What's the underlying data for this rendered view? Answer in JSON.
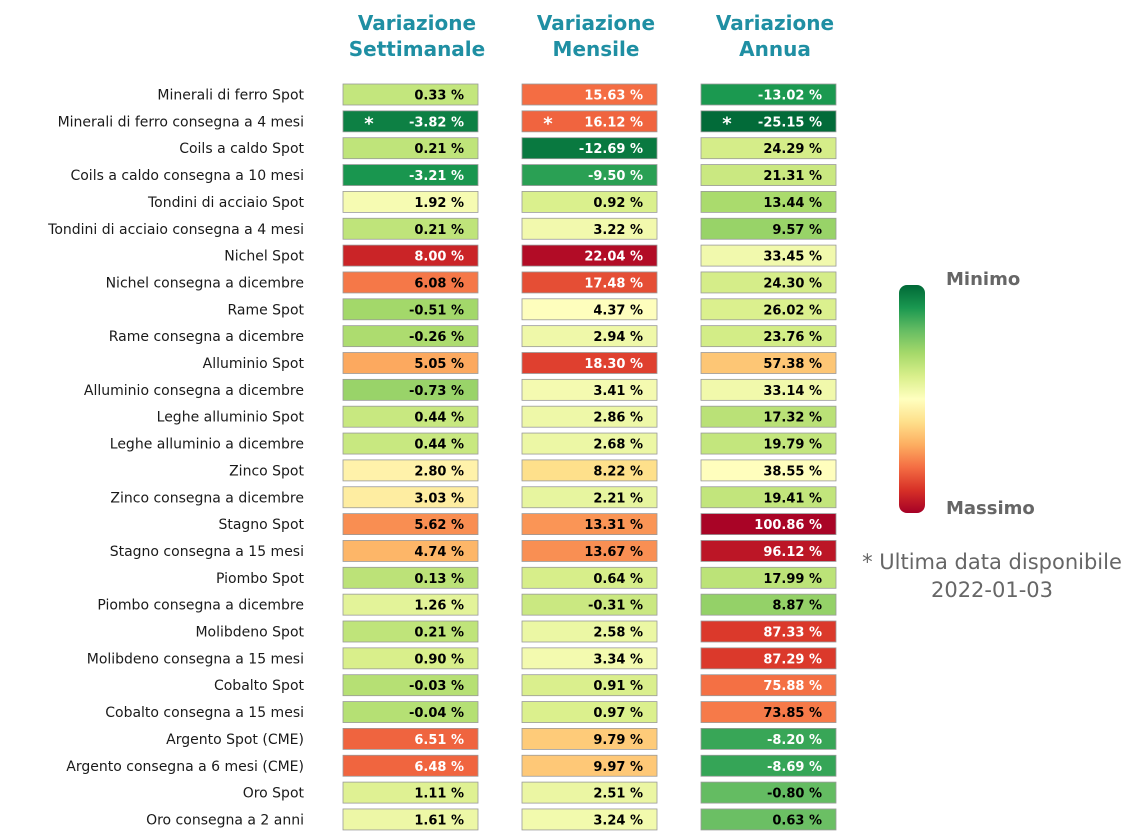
{
  "chart_data": {
    "type": "heatmap",
    "columns": [
      {
        "title_line1": "Variazione",
        "title_line2": "Settimanale"
      },
      {
        "title_line1": "Variazione",
        "title_line2": "Mensile"
      },
      {
        "title_line1": "Variazione",
        "title_line2": "Annua"
      }
    ],
    "rows": [
      {
        "label": "Minerali di ferro Spot",
        "values": [
          0.33,
          15.63,
          -13.02
        ],
        "stars": [
          false,
          false,
          false
        ]
      },
      {
        "label": "Minerali di ferro consegna a 4 mesi",
        "values": [
          -3.82,
          16.12,
          -25.15
        ],
        "stars": [
          true,
          true,
          true
        ]
      },
      {
        "label": "Coils a caldo Spot",
        "values": [
          0.21,
          -12.69,
          24.29
        ],
        "stars": [
          false,
          false,
          false
        ]
      },
      {
        "label": "Coils a caldo consegna a 10 mesi",
        "values": [
          -3.21,
          -9.5,
          21.31
        ],
        "stars": [
          false,
          false,
          false
        ]
      },
      {
        "label": "Tondini di acciaio Spot",
        "values": [
          1.92,
          0.92,
          13.44
        ],
        "stars": [
          false,
          false,
          false
        ]
      },
      {
        "label": "Tondini di acciaio consegna a 4 mesi",
        "values": [
          0.21,
          3.22,
          9.57
        ],
        "stars": [
          false,
          false,
          false
        ]
      },
      {
        "label": "Nichel Spot",
        "values": [
          8.0,
          22.04,
          33.45
        ],
        "stars": [
          false,
          false,
          false
        ]
      },
      {
        "label": "Nichel consegna a dicembre",
        "values": [
          6.08,
          17.48,
          24.3
        ],
        "stars": [
          false,
          false,
          false
        ]
      },
      {
        "label": "Rame Spot",
        "values": [
          -0.51,
          4.37,
          26.02
        ],
        "stars": [
          false,
          false,
          false
        ]
      },
      {
        "label": "Rame consegna a dicembre",
        "values": [
          -0.26,
          2.94,
          23.76
        ],
        "stars": [
          false,
          false,
          false
        ]
      },
      {
        "label": "Alluminio Spot",
        "values": [
          5.05,
          18.3,
          57.38
        ],
        "stars": [
          false,
          false,
          false
        ]
      },
      {
        "label": "Alluminio consegna a dicembre",
        "values": [
          -0.73,
          3.41,
          33.14
        ],
        "stars": [
          false,
          false,
          false
        ]
      },
      {
        "label": "Leghe alluminio Spot",
        "values": [
          0.44,
          2.86,
          17.32
        ],
        "stars": [
          false,
          false,
          false
        ]
      },
      {
        "label": "Leghe alluminio a dicembre",
        "values": [
          0.44,
          2.68,
          19.79
        ],
        "stars": [
          false,
          false,
          false
        ]
      },
      {
        "label": "Zinco Spot",
        "values": [
          2.8,
          8.22,
          38.55
        ],
        "stars": [
          false,
          false,
          false
        ]
      },
      {
        "label": "Zinco consegna a dicembre",
        "values": [
          3.03,
          2.21,
          19.41
        ],
        "stars": [
          false,
          false,
          false
        ]
      },
      {
        "label": "Stagno Spot",
        "values": [
          5.62,
          13.31,
          100.86
        ],
        "stars": [
          false,
          false,
          false
        ]
      },
      {
        "label": "Stagno consegna a 15 mesi",
        "values": [
          4.74,
          13.67,
          96.12
        ],
        "stars": [
          false,
          false,
          false
        ]
      },
      {
        "label": "Piombo Spot",
        "values": [
          0.13,
          0.64,
          17.99
        ],
        "stars": [
          false,
          false,
          false
        ]
      },
      {
        "label": "Piombo consegna a dicembre",
        "values": [
          1.26,
          -0.31,
          8.87
        ],
        "stars": [
          false,
          false,
          false
        ]
      },
      {
        "label": "Molibdeno Spot",
        "values": [
          0.21,
          2.58,
          87.33
        ],
        "stars": [
          false,
          false,
          false
        ]
      },
      {
        "label": "Molibdeno consegna a 15 mesi",
        "values": [
          0.9,
          3.34,
          87.29
        ],
        "stars": [
          false,
          false,
          false
        ]
      },
      {
        "label": "Cobalto Spot",
        "values": [
          -0.03,
          0.91,
          75.88
        ],
        "stars": [
          false,
          false,
          false
        ]
      },
      {
        "label": "Cobalto consegna a 15 mesi",
        "values": [
          -0.04,
          0.97,
          73.85
        ],
        "stars": [
          false,
          false,
          false
        ]
      },
      {
        "label": "Argento Spot (CME)",
        "values": [
          6.51,
          9.79,
          -8.2
        ],
        "stars": [
          false,
          false,
          false
        ]
      },
      {
        "label": "Argento consegna a 6 mesi (CME)",
        "values": [
          6.48,
          9.97,
          -8.69
        ],
        "stars": [
          false,
          false,
          false
        ]
      },
      {
        "label": "Oro Spot",
        "values": [
          1.11,
          2.51,
          -0.8
        ],
        "stars": [
          false,
          false,
          false
        ]
      },
      {
        "label": "Oro consegna a 2 anni",
        "values": [
          1.61,
          3.24,
          0.63
        ],
        "stars": [
          false,
          false,
          false
        ]
      }
    ],
    "value_suffix": " %",
    "star_symbol": "*",
    "color_scale": {
      "name": "RdYlGn_r",
      "ranges": [
        [
          -4.5,
          9
        ],
        [
          -14,
          23
        ],
        [
          -26,
          102
        ]
      ],
      "stops": [
        "#006837",
        "#1a9850",
        "#66bd63",
        "#a6d96a",
        "#d9ef8b",
        "#ffffbf",
        "#fee08b",
        "#fdae61",
        "#f46d43",
        "#d73027",
        "#a50026"
      ]
    },
    "legend": {
      "top_label": "Minimo",
      "bottom_label": "Massimo"
    }
  },
  "note": {
    "line1": "* Ultima data disponibile",
    "line2": "2022-01-03"
  }
}
